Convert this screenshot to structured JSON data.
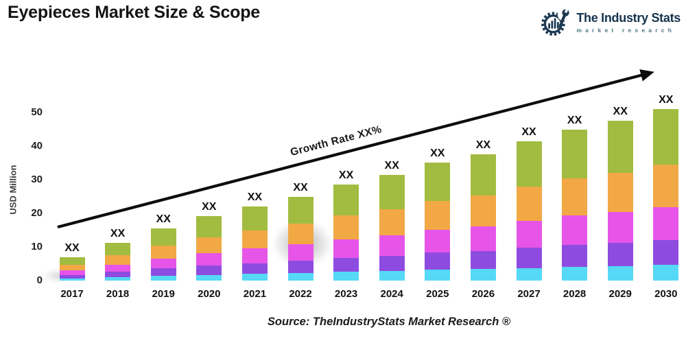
{
  "page": {
    "title": "Eyepieces Market Size & Scope",
    "source": "Source: TheIndustryStats Market Research ®"
  },
  "logo": {
    "name": "The Industry Stats",
    "tagline": "market research",
    "navy": "#1d3a52",
    "tagline_color": "#4c7382"
  },
  "chart_data": {
    "type": "bar",
    "stacked": true,
    "title": "Eyepieces Market Size & Scope",
    "ylabel": "USD Million",
    "xlabel": "",
    "categories": [
      "2017",
      "2018",
      "2019",
      "2020",
      "2021",
      "2022",
      "2023",
      "2024",
      "2025",
      "2026",
      "2027",
      "2028",
      "2029",
      "2030"
    ],
    "series": [
      {
        "name": "cyan",
        "color": "#55d9f6",
        "values": [
          0.6,
          1.0,
          1.4,
          1.7,
          2.0,
          2.3,
          2.6,
          2.8,
          3.2,
          3.4,
          3.7,
          4.1,
          4.3,
          4.6
        ]
      },
      {
        "name": "purple",
        "color": "#8e4be0",
        "values": [
          1.0,
          1.6,
          2.2,
          2.8,
          3.2,
          3.6,
          4.1,
          4.6,
          5.1,
          5.4,
          6.0,
          6.5,
          6.9,
          7.4
        ]
      },
      {
        "name": "magenta",
        "color": "#e655e8",
        "values": [
          1.4,
          2.2,
          3.0,
          3.7,
          4.3,
          4.9,
          5.6,
          6.1,
          6.8,
          7.3,
          8.1,
          8.8,
          9.3,
          9.9
        ]
      },
      {
        "name": "orange",
        "color": "#f2a845",
        "values": [
          1.7,
          2.7,
          3.8,
          4.7,
          5.4,
          6.1,
          7.0,
          7.7,
          8.6,
          9.2,
          10.2,
          11.0,
          11.6,
          12.5
        ]
      },
      {
        "name": "green",
        "color": "#a1bc40",
        "values": [
          2.3,
          3.7,
          5.1,
          6.2,
          7.2,
          8.1,
          9.3,
          10.2,
          11.4,
          12.2,
          13.5,
          14.6,
          15.4,
          16.6
        ]
      }
    ],
    "totals": [
      7.0,
      11.2,
      15.5,
      19.1,
      22.1,
      25.0,
      28.6,
      31.4,
      35.1,
      37.5,
      41.5,
      45.0,
      47.5,
      51.0
    ],
    "bar_total_labels": [
      "XX",
      "XX",
      "XX",
      "XX",
      "XX",
      "XX",
      "XX",
      "XX",
      "XX",
      "XX",
      "XX",
      "XX",
      "XX",
      "XX"
    ],
    "growth_label": "Growth Rate XX%",
    "yticks": [
      0,
      10,
      20,
      30,
      40,
      50
    ],
    "ylim": [
      0,
      52
    ],
    "grid": false,
    "legend": "none",
    "arrow_color": "#0d0d0d"
  }
}
